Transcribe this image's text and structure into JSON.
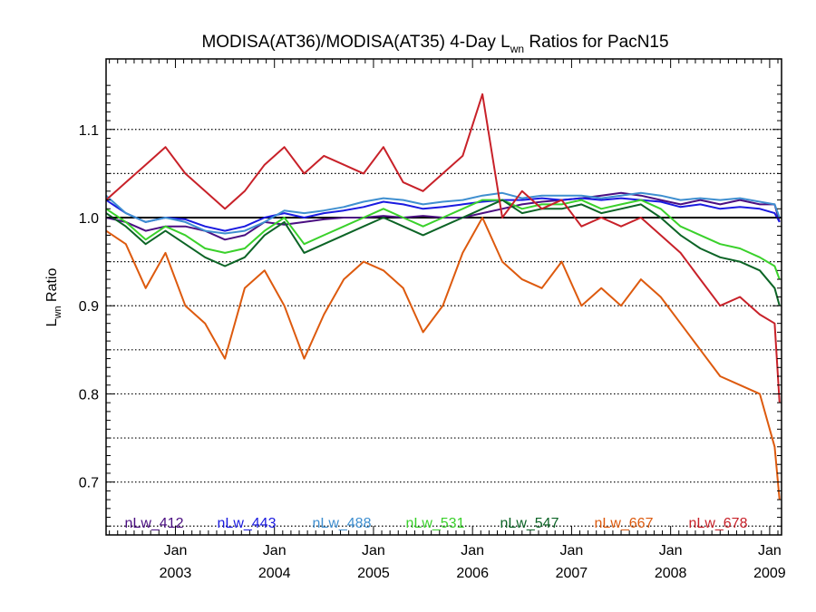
{
  "chart_data": {
    "type": "line",
    "title": {
      "prefix": "MODISA(AT36)/MODISA(AT35) 4-Day L",
      "subscript": "wn",
      "suffix": " Ratios for PacN15"
    },
    "ylabel": {
      "main": "L",
      "subscript": "wn",
      "suffix": " Ratio"
    },
    "xlim": [
      2002.3,
      2009.12
    ],
    "ylim": [
      0.64,
      1.18
    ],
    "y_ticks": [
      0.7,
      0.8,
      0.9,
      1.0,
      1.1
    ],
    "y_tick_labels": [
      "0.7",
      "0.8",
      "0.9",
      "1.0",
      "1.1"
    ],
    "y_gridlines": [
      0.65,
      0.7,
      0.75,
      0.8,
      0.85,
      0.9,
      0.95,
      1.05,
      1.1
    ],
    "reference_line": 1.0,
    "x_ticks": [
      {
        "value": 2003.0,
        "month": "Jan",
        "year": "2003"
      },
      {
        "value": 2004.0,
        "month": "Jan",
        "year": "2004"
      },
      {
        "value": 2005.0,
        "month": "Jan",
        "year": "2005"
      },
      {
        "value": 2006.0,
        "month": "Jan",
        "year": "2006"
      },
      {
        "value": 2007.0,
        "month": "Jan",
        "year": "2007"
      },
      {
        "value": 2008.0,
        "month": "Jan",
        "year": "2008"
      },
      {
        "value": 2009.0,
        "month": "Jan",
        "year": "2009"
      }
    ],
    "grid": "horizontal dotted",
    "legend_position": "bottom",
    "series": [
      {
        "name": "nLw_412",
        "color": "#4b0f82",
        "points": [
          [
            2002.3,
            1.0
          ],
          [
            2002.5,
            0.995
          ],
          [
            2002.7,
            0.985
          ],
          [
            2002.9,
            0.99
          ],
          [
            2003.1,
            0.99
          ],
          [
            2003.3,
            0.985
          ],
          [
            2003.5,
            0.975
          ],
          [
            2003.7,
            0.98
          ],
          [
            2003.9,
            0.995
          ],
          [
            2004.1,
            0.992
          ],
          [
            2004.3,
            0.995
          ],
          [
            2004.5,
            0.998
          ],
          [
            2004.7,
            1.0
          ],
          [
            2004.9,
            1.0
          ],
          [
            2005.1,
            1.002
          ],
          [
            2005.3,
            1.0
          ],
          [
            2005.5,
            1.002
          ],
          [
            2005.7,
            1.0
          ],
          [
            2005.9,
            1.0
          ],
          [
            2006.1,
            1.005
          ],
          [
            2006.3,
            1.01
          ],
          [
            2006.5,
            1.015
          ],
          [
            2006.7,
            1.018
          ],
          [
            2006.9,
            1.02
          ],
          [
            2007.1,
            1.022
          ],
          [
            2007.3,
            1.025
          ],
          [
            2007.5,
            1.028
          ],
          [
            2007.7,
            1.025
          ],
          [
            2007.9,
            1.02
          ],
          [
            2008.1,
            1.015
          ],
          [
            2008.3,
            1.02
          ],
          [
            2008.5,
            1.015
          ],
          [
            2008.7,
            1.02
          ],
          [
            2008.9,
            1.015
          ],
          [
            2009.05,
            1.015
          ],
          [
            2009.1,
            0.995
          ]
        ]
      },
      {
        "name": "nLw_443",
        "color": "#1a1ae0",
        "points": [
          [
            2002.3,
            1.02
          ],
          [
            2002.5,
            1.005
          ],
          [
            2002.7,
            0.995
          ],
          [
            2002.9,
            1.0
          ],
          [
            2003.1,
            0.998
          ],
          [
            2003.3,
            0.99
          ],
          [
            2003.5,
            0.985
          ],
          [
            2003.7,
            0.99
          ],
          [
            2003.9,
            1.0
          ],
          [
            2004.1,
            1.005
          ],
          [
            2004.3,
            1.0
          ],
          [
            2004.5,
            1.005
          ],
          [
            2004.7,
            1.008
          ],
          [
            2004.9,
            1.012
          ],
          [
            2005.1,
            1.018
          ],
          [
            2005.3,
            1.015
          ],
          [
            2005.5,
            1.01
          ],
          [
            2005.7,
            1.012
          ],
          [
            2005.9,
            1.015
          ],
          [
            2006.1,
            1.018
          ],
          [
            2006.3,
            1.02
          ],
          [
            2006.5,
            1.02
          ],
          [
            2006.7,
            1.022
          ],
          [
            2006.9,
            1.02
          ],
          [
            2007.1,
            1.022
          ],
          [
            2007.3,
            1.02
          ],
          [
            2007.5,
            1.022
          ],
          [
            2007.7,
            1.02
          ],
          [
            2007.9,
            1.018
          ],
          [
            2008.1,
            1.012
          ],
          [
            2008.3,
            1.015
          ],
          [
            2008.5,
            1.01
          ],
          [
            2008.7,
            1.012
          ],
          [
            2008.9,
            1.01
          ],
          [
            2009.05,
            1.005
          ],
          [
            2009.1,
            0.995
          ]
        ]
      },
      {
        "name": "nLw_488",
        "color": "#3f8fd0",
        "points": [
          [
            2002.3,
            1.025
          ],
          [
            2002.5,
            1.005
          ],
          [
            2002.7,
            0.995
          ],
          [
            2002.9,
            1.0
          ],
          [
            2003.1,
            0.995
          ],
          [
            2003.3,
            0.985
          ],
          [
            2003.5,
            0.982
          ],
          [
            2003.7,
            0.985
          ],
          [
            2003.9,
            0.995
          ],
          [
            2004.1,
            1.008
          ],
          [
            2004.3,
            1.005
          ],
          [
            2004.5,
            1.008
          ],
          [
            2004.7,
            1.012
          ],
          [
            2004.9,
            1.018
          ],
          [
            2005.1,
            1.022
          ],
          [
            2005.3,
            1.02
          ],
          [
            2005.5,
            1.015
          ],
          [
            2005.7,
            1.018
          ],
          [
            2005.9,
            1.02
          ],
          [
            2006.1,
            1.025
          ],
          [
            2006.3,
            1.028
          ],
          [
            2006.5,
            1.022
          ],
          [
            2006.7,
            1.025
          ],
          [
            2006.9,
            1.025
          ],
          [
            2007.1,
            1.025
          ],
          [
            2007.3,
            1.022
          ],
          [
            2007.5,
            1.025
          ],
          [
            2007.7,
            1.028
          ],
          [
            2007.9,
            1.025
          ],
          [
            2008.1,
            1.02
          ],
          [
            2008.3,
            1.022
          ],
          [
            2008.5,
            1.02
          ],
          [
            2008.7,
            1.022
          ],
          [
            2008.9,
            1.018
          ],
          [
            2009.05,
            1.015
          ],
          [
            2009.1,
            1.0
          ]
        ]
      },
      {
        "name": "nLw_531",
        "color": "#3ad12b",
        "points": [
          [
            2002.3,
            1.01
          ],
          [
            2002.5,
            0.995
          ],
          [
            2002.7,
            0.975
          ],
          [
            2002.9,
            0.99
          ],
          [
            2003.1,
            0.98
          ],
          [
            2003.3,
            0.965
          ],
          [
            2003.5,
            0.96
          ],
          [
            2003.7,
            0.965
          ],
          [
            2003.9,
            0.985
          ],
          [
            2004.1,
            1.0
          ],
          [
            2004.3,
            0.97
          ],
          [
            2004.5,
            0.98
          ],
          [
            2004.7,
            0.99
          ],
          [
            2004.9,
            1.0
          ],
          [
            2005.1,
            1.01
          ],
          [
            2005.3,
            1.0
          ],
          [
            2005.5,
            0.99
          ],
          [
            2005.7,
            1.0
          ],
          [
            2005.9,
            1.01
          ],
          [
            2006.1,
            1.02
          ],
          [
            2006.3,
            1.02
          ],
          [
            2006.5,
            1.01
          ],
          [
            2006.7,
            1.015
          ],
          [
            2006.9,
            1.015
          ],
          [
            2007.1,
            1.02
          ],
          [
            2007.3,
            1.01
          ],
          [
            2007.5,
            1.015
          ],
          [
            2007.7,
            1.02
          ],
          [
            2007.9,
            1.01
          ],
          [
            2008.1,
            0.99
          ],
          [
            2008.3,
            0.98
          ],
          [
            2008.5,
            0.97
          ],
          [
            2008.7,
            0.965
          ],
          [
            2008.9,
            0.955
          ],
          [
            2009.05,
            0.945
          ],
          [
            2009.1,
            0.93
          ]
        ]
      },
      {
        "name": "nLw_547",
        "color": "#0c6426",
        "points": [
          [
            2002.3,
            1.005
          ],
          [
            2002.5,
            0.99
          ],
          [
            2002.7,
            0.97
          ],
          [
            2002.9,
            0.985
          ],
          [
            2003.1,
            0.97
          ],
          [
            2003.3,
            0.955
          ],
          [
            2003.5,
            0.945
          ],
          [
            2003.7,
            0.955
          ],
          [
            2003.9,
            0.98
          ],
          [
            2004.1,
            0.995
          ],
          [
            2004.3,
            0.96
          ],
          [
            2004.5,
            0.97
          ],
          [
            2004.7,
            0.98
          ],
          [
            2004.9,
            0.99
          ],
          [
            2005.1,
            1.0
          ],
          [
            2005.3,
            0.99
          ],
          [
            2005.5,
            0.98
          ],
          [
            2005.7,
            0.99
          ],
          [
            2005.9,
            1.0
          ],
          [
            2006.1,
            1.01
          ],
          [
            2006.3,
            1.02
          ],
          [
            2006.5,
            1.005
          ],
          [
            2006.7,
            1.01
          ],
          [
            2006.9,
            1.01
          ],
          [
            2007.1,
            1.015
          ],
          [
            2007.3,
            1.005
          ],
          [
            2007.5,
            1.01
          ],
          [
            2007.7,
            1.015
          ],
          [
            2007.9,
            1.0
          ],
          [
            2008.1,
            0.98
          ],
          [
            2008.3,
            0.965
          ],
          [
            2008.5,
            0.955
          ],
          [
            2008.7,
            0.95
          ],
          [
            2008.9,
            0.94
          ],
          [
            2009.05,
            0.92
          ],
          [
            2009.1,
            0.9
          ]
        ]
      },
      {
        "name": "nLw_667",
        "color": "#dd5a0e",
        "points": [
          [
            2002.3,
            0.985
          ],
          [
            2002.5,
            0.97
          ],
          [
            2002.7,
            0.92
          ],
          [
            2002.9,
            0.96
          ],
          [
            2003.1,
            0.9
          ],
          [
            2003.3,
            0.88
          ],
          [
            2003.5,
            0.84
          ],
          [
            2003.7,
            0.92
          ],
          [
            2003.9,
            0.94
          ],
          [
            2004.1,
            0.9
          ],
          [
            2004.3,
            0.84
          ],
          [
            2004.5,
            0.89
          ],
          [
            2004.7,
            0.93
          ],
          [
            2004.9,
            0.95
          ],
          [
            2005.1,
            0.94
          ],
          [
            2005.3,
            0.92
          ],
          [
            2005.5,
            0.87
          ],
          [
            2005.7,
            0.9
          ],
          [
            2005.9,
            0.96
          ],
          [
            2006.1,
            1.0
          ],
          [
            2006.3,
            0.95
          ],
          [
            2006.5,
            0.93
          ],
          [
            2006.7,
            0.92
          ],
          [
            2006.9,
            0.95
          ],
          [
            2007.1,
            0.9
          ],
          [
            2007.3,
            0.92
          ],
          [
            2007.5,
            0.9
          ],
          [
            2007.7,
            0.93
          ],
          [
            2007.9,
            0.91
          ],
          [
            2008.1,
            0.88
          ],
          [
            2008.3,
            0.85
          ],
          [
            2008.5,
            0.82
          ],
          [
            2008.7,
            0.81
          ],
          [
            2008.9,
            0.8
          ],
          [
            2009.05,
            0.74
          ],
          [
            2009.1,
            0.68
          ]
        ]
      },
      {
        "name": "nLw_678",
        "color": "#c82129",
        "points": [
          [
            2002.3,
            1.02
          ],
          [
            2002.5,
            1.04
          ],
          [
            2002.7,
            1.06
          ],
          [
            2002.9,
            1.08
          ],
          [
            2003.1,
            1.05
          ],
          [
            2003.3,
            1.03
          ],
          [
            2003.5,
            1.01
          ],
          [
            2003.7,
            1.03
          ],
          [
            2003.9,
            1.06
          ],
          [
            2004.1,
            1.08
          ],
          [
            2004.3,
            1.05
          ],
          [
            2004.5,
            1.07
          ],
          [
            2004.7,
            1.06
          ],
          [
            2004.9,
            1.05
          ],
          [
            2005.1,
            1.08
          ],
          [
            2005.3,
            1.04
          ],
          [
            2005.5,
            1.03
          ],
          [
            2005.7,
            1.05
          ],
          [
            2005.9,
            1.07
          ],
          [
            2006.1,
            1.14
          ],
          [
            2006.3,
            1.0
          ],
          [
            2006.5,
            1.03
          ],
          [
            2006.7,
            1.01
          ],
          [
            2006.9,
            1.02
          ],
          [
            2007.1,
            0.99
          ],
          [
            2007.3,
            1.0
          ],
          [
            2007.5,
            0.99
          ],
          [
            2007.7,
            1.0
          ],
          [
            2007.9,
            0.98
          ],
          [
            2008.1,
            0.96
          ],
          [
            2008.3,
            0.93
          ],
          [
            2008.5,
            0.9
          ],
          [
            2008.7,
            0.91
          ],
          [
            2008.9,
            0.89
          ],
          [
            2009.05,
            0.88
          ],
          [
            2009.1,
            0.79
          ]
        ]
      }
    ]
  }
}
